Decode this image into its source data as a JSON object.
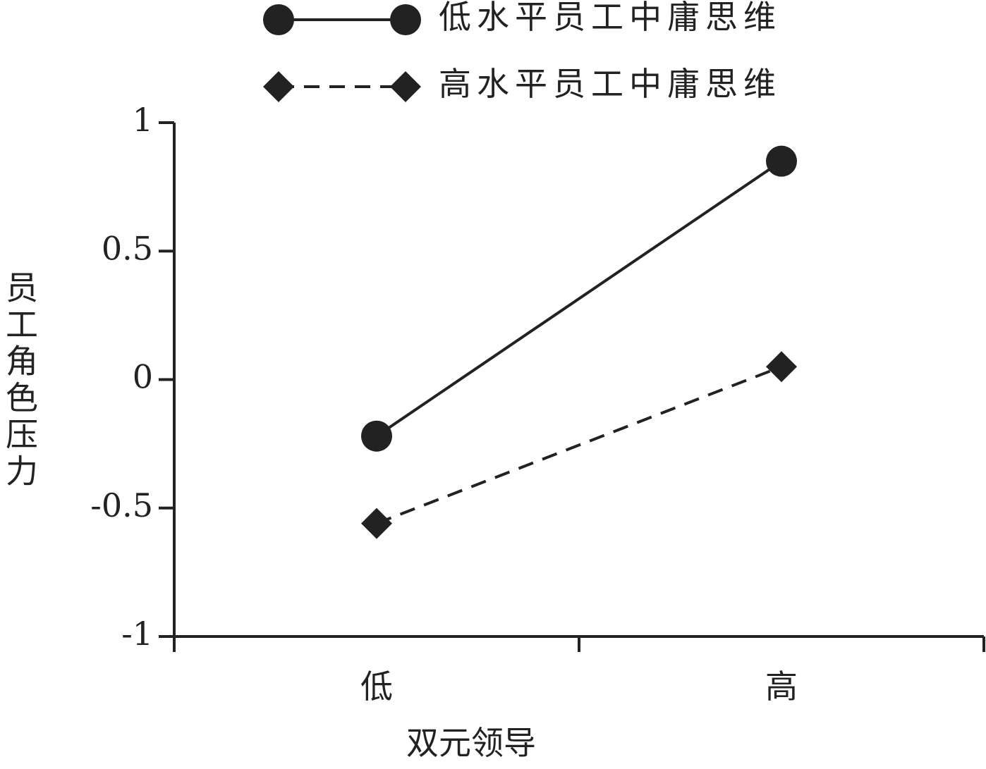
{
  "chart_data": {
    "type": "line",
    "xlabel": "双元领导",
    "ylabel": "员工角色压力",
    "categories": [
      "低",
      "高"
    ],
    "series": [
      {
        "name": "低水平员工中庸思维",
        "color": "#222222",
        "marker": "circle",
        "dash": "solid",
        "values": [
          -0.22,
          0.85
        ]
      },
      {
        "name": "高水平员工中庸思维",
        "color": "#222222",
        "marker": "diamond",
        "dash": "dashed",
        "values": [
          -0.56,
          0.05
        ]
      }
    ],
    "ylim": [
      -1,
      1
    ],
    "yticks": [
      -1,
      -0.5,
      0,
      0.5,
      1
    ],
    "grid": false
  }
}
